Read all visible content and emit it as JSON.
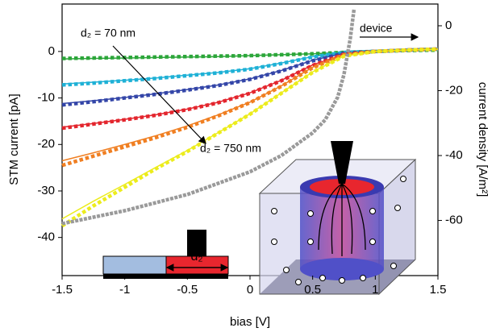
{
  "chart_data": {
    "type": "line",
    "x_label": "bias [V]",
    "y_label": "STM current [pA]",
    "y2_label": "current density [A/m²]",
    "annotations": [
      "d₂ = 70 nm",
      "d₂ = 750 nm",
      "device",
      "d₂"
    ],
    "x": [
      -1.5,
      -1.25,
      -1.0,
      -0.75,
      -0.5,
      -0.25,
      0,
      0.25,
      0.5,
      0.75,
      1.0,
      1.25,
      1.5
    ],
    "xlim": [
      -1.5,
      1.5
    ],
    "xticks": [
      -1.5,
      -1.0,
      -0.5,
      0.0,
      0.5,
      1.0,
      1.5
    ],
    "ylim": [
      -48.2,
      10.2
    ],
    "yticks": [
      -40,
      -30,
      -20,
      -10,
      0
    ],
    "y2lim": [
      -77,
      6.7
    ],
    "y2ticks": [
      -60,
      -40,
      -20,
      0
    ],
    "series": [
      {
        "color": "#2ca63a",
        "style": "markers",
        "values": [
          -1.5,
          -1.4,
          -1.3,
          -1.2,
          -1.1,
          -1.0,
          -0.9,
          -0.7,
          -0.5,
          -0.2,
          0,
          0.2,
          0.3
        ]
      },
      {
        "color": "#2ca63a",
        "style": "line",
        "values": [
          -1.6,
          -1.5,
          -1.4,
          -1.3,
          -1.2,
          -1.1,
          -0.9,
          -0.7,
          -0.5,
          -0.2,
          0,
          0.2,
          0.3
        ]
      },
      {
        "color": "#1fb1d6",
        "style": "markers",
        "values": [
          -7.2,
          -6.8,
          -6.3,
          -5.8,
          -5.2,
          -4.6,
          -3.8,
          -2.6,
          -1.2,
          -0.2,
          0,
          0.3,
          0.5
        ]
      },
      {
        "color": "#1fb1d6",
        "style": "line",
        "values": [
          -7.0,
          -6.6,
          -6.2,
          -5.7,
          -5.1,
          -4.5,
          -3.7,
          -2.5,
          -1.1,
          -0.2,
          0,
          0.3,
          0.5
        ]
      },
      {
        "color": "#3446a8",
        "style": "markers",
        "values": [
          -11.5,
          -10.8,
          -10,
          -9.2,
          -8.3,
          -7.3,
          -6,
          -4.2,
          -2,
          -0.4,
          0,
          0.3,
          0.5
        ]
      },
      {
        "color": "#3446a8",
        "style": "line",
        "values": [
          -11.2,
          -10.6,
          -9.9,
          -9.1,
          -8.2,
          -7.2,
          -5.9,
          -4.1,
          -1.9,
          -0.4,
          0,
          0.3,
          0.5
        ]
      },
      {
        "color": "#e3262e",
        "style": "markers",
        "values": [
          -16.5,
          -15.6,
          -14.7,
          -13.7,
          -12.5,
          -11,
          -9,
          -6.3,
          -3,
          -0.6,
          0,
          0.3,
          0.5
        ]
      },
      {
        "color": "#e3262e",
        "style": "line",
        "values": [
          -16.3,
          -15.5,
          -14.6,
          -13.6,
          -12.4,
          -10.9,
          -8.9,
          -6.2,
          -2.9,
          -0.6,
          0,
          0.3,
          0.5
        ]
      },
      {
        "color": "#f07f22",
        "style": "markers",
        "values": [
          -24.5,
          -22.5,
          -20.5,
          -18.5,
          -16.3,
          -13.8,
          -11,
          -7.5,
          -3.5,
          -0.7,
          0,
          0.3,
          0.5
        ]
      },
      {
        "color": "#f07f22",
        "style": "line",
        "values": [
          -23.5,
          -21.8,
          -20,
          -18.1,
          -16,
          -13.6,
          -10.9,
          -7.4,
          -3.4,
          -0.7,
          0,
          0.3,
          0.5
        ]
      },
      {
        "color": "#ecec1c",
        "style": "markers",
        "values": [
          -37.5,
          -33.2,
          -29.2,
          -25.2,
          -21.5,
          -17.5,
          -13.5,
          -9,
          -4.5,
          -1,
          0,
          0.3,
          0.5
        ]
      },
      {
        "color": "#ecec1c",
        "style": "line",
        "values": [
          -36,
          -32.2,
          -28.6,
          -24.9,
          -21.3,
          -17.4,
          -13.4,
          -8.9,
          -4.4,
          -1,
          0,
          0.3,
          0.5
        ]
      }
    ],
    "device": {
      "color": "#9a9a9a",
      "axis": "y2",
      "x": [
        -1.5,
        -1.0,
        -0.5,
        0,
        0.25,
        0.5,
        0.6,
        0.7,
        0.75,
        0.8,
        0.83
      ],
      "values": [
        -61,
        -57,
        -52,
        -45,
        -40,
        -33,
        -29,
        -22,
        -15,
        -4,
        5
      ]
    }
  }
}
